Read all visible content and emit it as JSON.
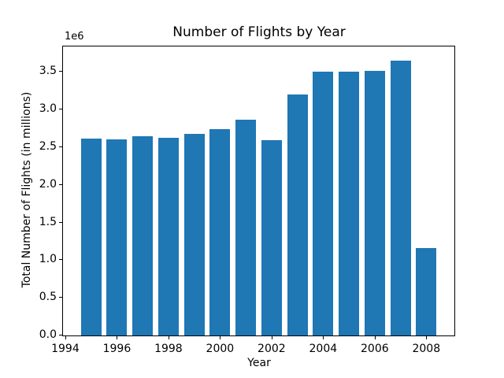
{
  "chart_data": {
    "type": "bar",
    "title": "Number of Flights by Year",
    "xlabel": "Year",
    "ylabel": "Total Number of Flights (in millions)",
    "offset_text": "1e6",
    "bar_color": "#1f77b4",
    "background_color": "#ffffff",
    "spine_color": "#000000",
    "grid": false,
    "legend": null,
    "categories": [
      1995,
      1996,
      1997,
      1998,
      1999,
      2000,
      2001,
      2002,
      2003,
      2004,
      2005,
      2006,
      2007,
      2008
    ],
    "values": [
      2620000,
      2610000,
      2650000,
      2630000,
      2680000,
      2740000,
      2870000,
      2600000,
      3200000,
      3510000,
      3510000,
      3520000,
      3650000,
      1160000
    ],
    "bar_width_years": 0.8,
    "xticks": [
      1994,
      1996,
      1998,
      2000,
      2002,
      2004,
      2006,
      2008
    ],
    "xtick_labels": [
      "1994",
      "1996",
      "1998",
      "2000",
      "2002",
      "2004",
      "2006",
      "2008"
    ],
    "yticks": [
      0,
      500000,
      1000000,
      1500000,
      2000000,
      2500000,
      3000000,
      3500000
    ],
    "ytick_labels": [
      "0.0",
      "0.5",
      "1.0",
      "1.5",
      "2.0",
      "2.5",
      "3.0",
      "3.5"
    ],
    "xlim": [
      1993.91,
      2009.09
    ],
    "ylim": [
      0,
      3840000
    ]
  }
}
